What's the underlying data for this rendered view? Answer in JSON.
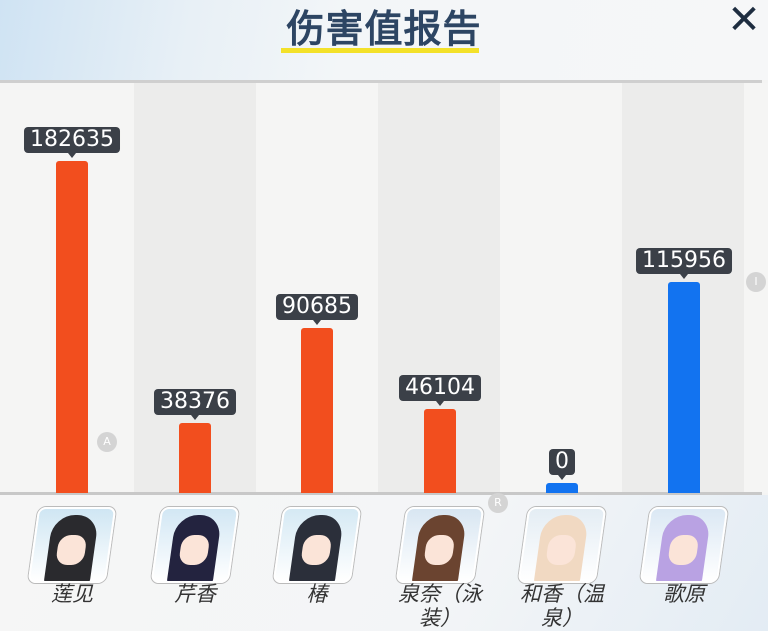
{
  "header": {
    "title": "伤害值报告",
    "close_icon": "close-x-icon"
  },
  "colors": {
    "attacker": "#f24e1e",
    "support": "#1273f0",
    "label_bg": "#3b4048",
    "title": "#2d4563",
    "underline": "#f3e12a"
  },
  "chart_data": {
    "type": "bar",
    "categories": [
      "莲见",
      "芹香",
      "椿",
      "泉奈（泳装）",
      "和香（温泉）",
      "歌原"
    ],
    "values": [
      182635,
      38376,
      90685,
      46104,
      0,
      115956
    ],
    "bar_colors": [
      "#f24e1e",
      "#f24e1e",
      "#f24e1e",
      "#f24e1e",
      "#1273f0",
      "#1273f0"
    ],
    "value_labels": [
      "182635",
      "38376",
      "90685",
      "46104",
      "0",
      "115956"
    ]
  },
  "characters": [
    {
      "name": "莲见",
      "hair": "#2a2a2e",
      "bg": "#cfe6f3"
    },
    {
      "name": "芹香",
      "hair": "#23233f",
      "bg": "#d2e7f4"
    },
    {
      "name": "椿",
      "hair": "#2b2f3a",
      "bg": "#d5e9f4"
    },
    {
      "name": "泉奈（泳装）",
      "hair": "#6b4430",
      "bg": "#d8e6f2"
    },
    {
      "name": "和香（温泉）",
      "hair": "#f1d9c2",
      "bg": "#e4edf4"
    },
    {
      "name": "歌原",
      "hair": "#b9a2e3",
      "bg": "#dbe8f4"
    }
  ],
  "markers": [
    "A",
    "R",
    "I"
  ]
}
